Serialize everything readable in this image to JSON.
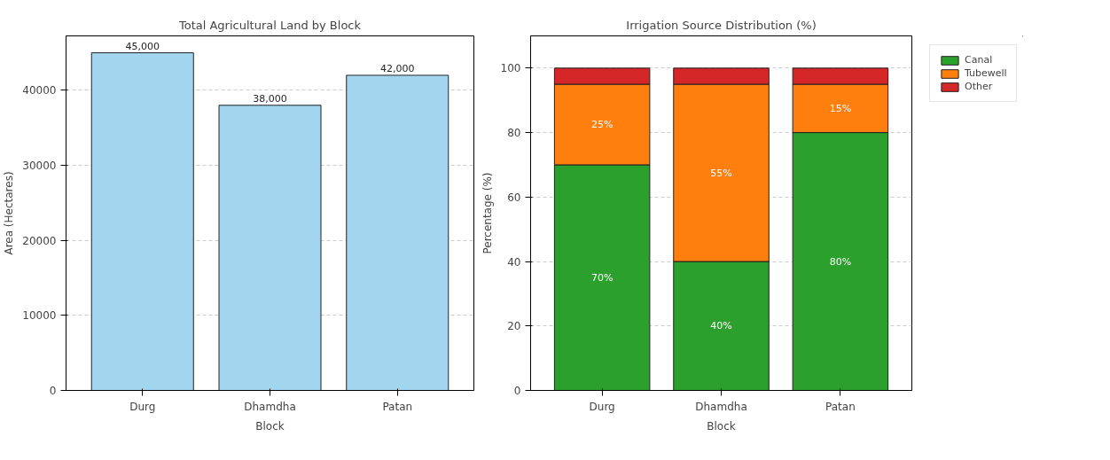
{
  "chart_data": [
    {
      "type": "bar",
      "title": "Total Agricultural Land by Block",
      "xlabel": "Block",
      "ylabel": "Area (Hectares)",
      "categories": [
        "Durg",
        "Dhamdha",
        "Patan"
      ],
      "values": [
        45000,
        38000,
        42000
      ],
      "color": "#a1d6ee",
      "value_labels": [
        "45,000",
        "38,000",
        "42,000"
      ],
      "ylim": [
        0,
        47250
      ],
      "yticks": [
        0,
        10000,
        20000,
        30000,
        40000
      ],
      "grid": "y"
    },
    {
      "type": "bar",
      "title": "Irrigation Source Distribution (%)",
      "xlabel": "Block",
      "ylabel": "Percentage (%)",
      "categories": [
        "Durg",
        "Dhamdha",
        "Patan"
      ],
      "stacked": true,
      "series": [
        {
          "name": "Canal",
          "color": "#2ca02c",
          "values": [
            70,
            40,
            80
          ],
          "value_labels": [
            "70%",
            "40%",
            "80%"
          ]
        },
        {
          "name": "Tubewell",
          "color": "#ff7f0e",
          "values": [
            25,
            55,
            15
          ],
          "value_labels": [
            "25%",
            "55%",
            "15%"
          ]
        },
        {
          "name": "Other",
          "color": "#d62728",
          "values": [
            5,
            5,
            5
          ],
          "value_labels": [
            null,
            null,
            null
          ]
        }
      ],
      "ylim": [
        0,
        110
      ],
      "yticks": [
        0,
        20,
        40,
        60,
        80,
        100
      ],
      "grid": "y",
      "legend": "top right"
    }
  ]
}
